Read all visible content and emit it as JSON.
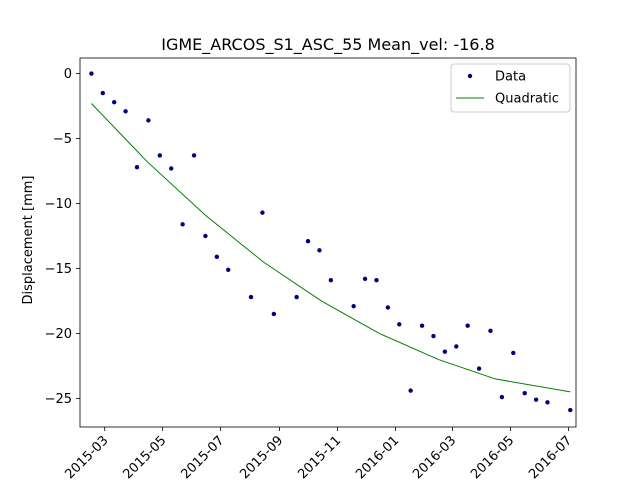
{
  "chart_data": {
    "type": "scatter",
    "title": "IGME_ARCOS_S1_ASC_55     Mean_vel: -16.8",
    "xlabel": "",
    "ylabel": "Displacement [mm]",
    "xlim": [
      "2015-02-03",
      "2016-07-09"
    ],
    "ylim": [
      -27.2,
      1.2
    ],
    "x_ticks": [
      "2015-03",
      "2015-05",
      "2015-07",
      "2015-09",
      "2015-11",
      "2016-01",
      "2016-03",
      "2016-05",
      "2016-07"
    ],
    "y_ticks": [
      0,
      -5,
      -10,
      -15,
      -20,
      -25
    ],
    "grid": false,
    "legend_position": "top-right",
    "colors": {
      "data": "#000080",
      "fit": "#008000"
    },
    "series": [
      {
        "name": "Data",
        "kind": "points",
        "points": [
          {
            "x": "2015-02-15",
            "y": 0.0
          },
          {
            "x": "2015-02-27",
            "y": -1.5
          },
          {
            "x": "2015-03-11",
            "y": -2.2
          },
          {
            "x": "2015-03-23",
            "y": -2.9
          },
          {
            "x": "2015-04-04",
            "y": -7.2
          },
          {
            "x": "2015-04-16",
            "y": -3.6
          },
          {
            "x": "2015-04-28",
            "y": -6.3
          },
          {
            "x": "2015-05-10",
            "y": -7.3
          },
          {
            "x": "2015-05-22",
            "y": -11.6
          },
          {
            "x": "2015-06-03",
            "y": -6.3
          },
          {
            "x": "2015-06-15",
            "y": -12.5
          },
          {
            "x": "2015-06-27",
            "y": -14.1
          },
          {
            "x": "2015-07-09",
            "y": -15.1
          },
          {
            "x": "2015-08-02",
            "y": -17.2
          },
          {
            "x": "2015-08-14",
            "y": -10.7
          },
          {
            "x": "2015-08-26",
            "y": -18.5
          },
          {
            "x": "2015-09-19",
            "y": -17.2
          },
          {
            "x": "2015-10-01",
            "y": -12.9
          },
          {
            "x": "2015-10-13",
            "y": -13.6
          },
          {
            "x": "2015-10-25",
            "y": -15.9
          },
          {
            "x": "2015-11-18",
            "y": -17.9
          },
          {
            "x": "2015-11-30",
            "y": -15.8
          },
          {
            "x": "2015-12-12",
            "y": -15.9
          },
          {
            "x": "2015-12-24",
            "y": -18.0
          },
          {
            "x": "2016-01-05",
            "y": -19.3
          },
          {
            "x": "2016-01-17",
            "y": -24.4
          },
          {
            "x": "2016-01-29",
            "y": -19.4
          },
          {
            "x": "2016-02-10",
            "y": -20.2
          },
          {
            "x": "2016-02-22",
            "y": -21.4
          },
          {
            "x": "2016-03-05",
            "y": -21.0
          },
          {
            "x": "2016-03-17",
            "y": -19.4
          },
          {
            "x": "2016-03-29",
            "y": -22.7
          },
          {
            "x": "2016-04-10",
            "y": -19.8
          },
          {
            "x": "2016-04-22",
            "y": -24.9
          },
          {
            "x": "2016-05-04",
            "y": -21.5
          },
          {
            "x": "2016-05-16",
            "y": -24.6
          },
          {
            "x": "2016-05-28",
            "y": -25.1
          },
          {
            "x": "2016-06-09",
            "y": -25.3
          },
          {
            "x": "2016-07-03",
            "y": -25.9
          }
        ]
      },
      {
        "name": "Quadratic",
        "kind": "line",
        "points": [
          {
            "x": "2015-02-15",
            "y": -2.3
          },
          {
            "x": "2015-04-15",
            "y": -6.8
          },
          {
            "x": "2015-06-15",
            "y": -10.9
          },
          {
            "x": "2015-08-15",
            "y": -14.5
          },
          {
            "x": "2015-10-15",
            "y": -17.5
          },
          {
            "x": "2015-12-15",
            "y": -20.0
          },
          {
            "x": "2016-02-15",
            "y": -22.0
          },
          {
            "x": "2016-04-15",
            "y": -23.5
          },
          {
            "x": "2016-07-03",
            "y": -24.5
          }
        ]
      }
    ]
  }
}
